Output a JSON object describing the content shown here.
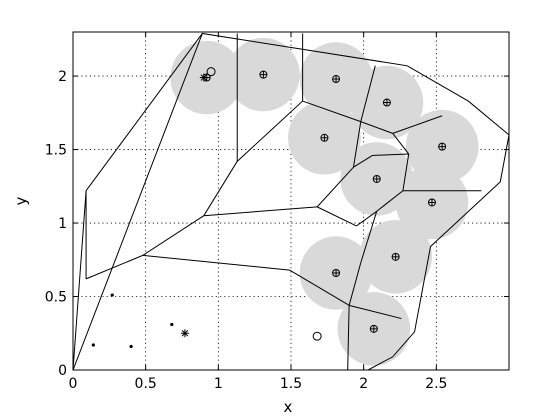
{
  "chart_data": {
    "type": "scatter",
    "title": "",
    "xlabel": "x",
    "ylabel": "y",
    "xlim": [
      0,
      3
    ],
    "ylim": [
      0,
      2.3
    ],
    "grid": true,
    "x_ticks": [
      0,
      0.5,
      1,
      1.5,
      2,
      2.5
    ],
    "y_ticks": [
      0,
      0.5,
      1,
      1.5,
      2
    ],
    "x_tick_labels": [
      "0",
      "0.5",
      "1",
      "1.5",
      "2",
      "2.5"
    ],
    "y_tick_labels": [
      "0",
      "0.5",
      "1",
      "1.5",
      "2"
    ],
    "coverage_radius": 0.25,
    "coverage_color": "#d9d9d9",
    "region_boundary": [
      [
        0,
        0
      ],
      [
        0.89,
        2.29
      ],
      [
        2.3,
        2.07
      ],
      [
        2.72,
        1.83
      ],
      [
        3.0,
        1.6
      ],
      [
        2.94,
        1.28
      ],
      [
        2.46,
        0.84
      ],
      [
        2.35,
        0.26
      ],
      [
        2.2,
        0.09
      ],
      [
        2.03,
        0.0
      ],
      [
        1.89,
        0.0
      ]
    ],
    "voronoi_edges": [
      [
        [
          0.09,
          1.22
        ],
        [
          0.0,
          0.0
        ]
      ],
      [
        [
          0.09,
          1.22
        ],
        [
          0.89,
          2.29
        ]
      ],
      [
        [
          0.09,
          1.22
        ],
        [
          0.09,
          0.62
        ]
      ],
      [
        [
          0.09,
          0.62
        ],
        [
          0.48,
          0.78
        ]
      ],
      [
        [
          0.48,
          0.78
        ],
        [
          0.9,
          1.05
        ]
      ],
      [
        [
          0.9,
          1.05
        ],
        [
          1.13,
          1.42
        ]
      ],
      [
        [
          1.13,
          1.42
        ],
        [
          1.13,
          2.29
        ]
      ],
      [
        [
          1.13,
          1.42
        ],
        [
          1.58,
          1.83
        ]
      ],
      [
        [
          1.58,
          1.83
        ],
        [
          1.58,
          2.29
        ]
      ],
      [
        [
          1.58,
          1.83
        ],
        [
          1.98,
          1.69
        ]
      ],
      [
        [
          1.98,
          1.69
        ],
        [
          2.08,
          2.07
        ]
      ],
      [
        [
          1.98,
          1.69
        ],
        [
          1.93,
          1.38
        ]
      ],
      [
        [
          1.93,
          1.38
        ],
        [
          1.68,
          1.11
        ]
      ],
      [
        [
          1.68,
          1.11
        ],
        [
          0.9,
          1.05
        ]
      ],
      [
        [
          1.68,
          1.11
        ],
        [
          1.95,
          0.98
        ]
      ],
      [
        [
          1.95,
          0.98
        ],
        [
          2.09,
          1.08
        ]
      ],
      [
        [
          2.09,
          1.08
        ],
        [
          2.27,
          1.22
        ]
      ],
      [
        [
          2.27,
          1.22
        ],
        [
          2.31,
          1.47
        ]
      ],
      [
        [
          2.31,
          1.47
        ],
        [
          2.2,
          1.61
        ]
      ],
      [
        [
          2.2,
          1.61
        ],
        [
          1.98,
          1.69
        ]
      ],
      [
        [
          2.2,
          1.61
        ],
        [
          2.54,
          1.73
        ]
      ],
      [
        [
          1.93,
          1.38
        ],
        [
          2.06,
          1.46
        ]
      ],
      [
        [
          2.06,
          1.46
        ],
        [
          2.31,
          1.47
        ]
      ],
      [
        [
          2.27,
          1.22
        ],
        [
          2.81,
          1.22
        ]
      ],
      [
        [
          2.09,
          1.08
        ],
        [
          1.98,
          0.73
        ]
      ],
      [
        [
          1.98,
          0.73
        ],
        [
          1.9,
          0.44
        ]
      ],
      [
        [
          1.9,
          0.44
        ],
        [
          1.89,
          0.0
        ]
      ],
      [
        [
          1.9,
          0.44
        ],
        [
          2.26,
          0.35
        ]
      ],
      [
        [
          1.9,
          0.44
        ],
        [
          1.49,
          0.68
        ]
      ],
      [
        [
          1.49,
          0.68
        ],
        [
          0.48,
          0.78
        ]
      ]
    ],
    "series": [
      {
        "marker": "target-plus",
        "points": [
          [
            0.92,
            1.99
          ],
          [
            1.31,
            2.01
          ],
          [
            1.81,
            1.98
          ],
          [
            2.16,
            1.82
          ],
          [
            1.73,
            1.58
          ],
          [
            2.54,
            1.52
          ],
          [
            2.09,
            1.3
          ],
          [
            2.47,
            1.14
          ],
          [
            2.22,
            0.77
          ],
          [
            1.81,
            0.66
          ],
          [
            2.07,
            0.28
          ]
        ]
      },
      {
        "marker": "circle",
        "points": [
          [
            0.95,
            2.03
          ],
          [
            1.68,
            0.23
          ]
        ]
      },
      {
        "marker": "star",
        "points": [
          [
            0.9,
            1.99
          ],
          [
            0.77,
            0.25
          ]
        ]
      },
      {
        "marker": "dot",
        "points": [
          [
            0.27,
            0.51
          ],
          [
            0.68,
            0.31
          ],
          [
            0.14,
            0.17
          ],
          [
            0.4,
            0.16
          ]
        ]
      }
    ]
  }
}
